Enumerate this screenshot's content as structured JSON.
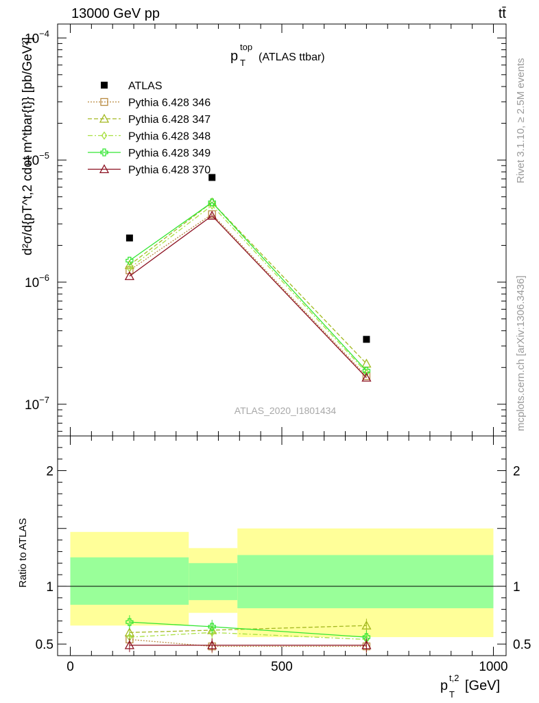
{
  "header": {
    "left": "13000 GeV pp",
    "right": "tt̄"
  },
  "side_labels": {
    "rivet": "Rivet 3.1.10, ≥ 2.5M events",
    "mcplots": "mcplots.cern.ch [arXiv:1306.3436]"
  },
  "chart_data": [
    {
      "type": "line",
      "title": "(ATLAS ttbar)",
      "title_main": "p",
      "title_sup": "top",
      "title_sub": "T",
      "ylabel": "d²σ/d{pT^t,2 cdot m^tbar{t}} [pb/GeV²]",
      "yscale": "log",
      "ylim": [
        5.5e-08,
        0.00013
      ],
      "xlim": [
        -30,
        1030
      ],
      "y_ticks": [
        "10⁻⁷",
        "10⁻⁶",
        "10⁻⁵",
        "10⁻⁴"
      ],
      "watermark": "ATLAS_2020_I1801434",
      "x": [
        140,
        335,
        700
      ],
      "series": [
        {
          "name": "ATLAS",
          "color": "#000000",
          "marker": "square-filled",
          "dash": "none",
          "values": [
            2.3e-06,
            7.2e-06,
            3.4e-07
          ]
        },
        {
          "name": "Pythia 6.428 346",
          "color": "#b8893e",
          "marker": "square-open",
          "dash": "dotted",
          "values": [
            1.25e-06,
            3.6e-06,
            1.7e-07
          ]
        },
        {
          "name": "Pythia 6.428 347",
          "color": "#a2b81e",
          "marker": "triangle-open",
          "dash": "dashed",
          "values": [
            1.38e-06,
            4.5e-06,
            2.15e-07
          ]
        },
        {
          "name": "Pythia 6.428 348",
          "color": "#a8e040",
          "marker": "diamond-open",
          "dash": "dashdot",
          "values": [
            1.3e-06,
            4.25e-06,
            1.82e-07
          ]
        },
        {
          "name": "Pythia 6.428 349",
          "color": "#33e633",
          "marker": "cross-open",
          "dash": "solid",
          "values": [
            1.5e-06,
            4.5e-06,
            1.88e-07
          ]
        },
        {
          "name": "Pythia 6.428 370",
          "color": "#8b0f1f",
          "marker": "triangle-open",
          "dash": "solid",
          "values": [
            1.12e-06,
            3.5e-06,
            1.65e-07
          ]
        }
      ]
    },
    {
      "type": "line",
      "ylabel": "Ratio to ATLAS",
      "xlabel": "[GeV]",
      "xlabel_main": "p",
      "xlabel_sup": "t,2",
      "xlabel_sub": "T",
      "ylim": [
        0.4,
        2.3
      ],
      "xlim": [
        -30,
        1030
      ],
      "y_ticks": [
        "0.5",
        "1",
        "2"
      ],
      "y_tick_values": [
        0.5,
        1,
        2
      ],
      "x_ticks": [
        "0",
        "500",
        "1000"
      ],
      "x_tick_values": [
        0,
        500,
        1000
      ],
      "bands": [
        {
          "x": [
            0,
            280
          ],
          "yellow": [
            0.66,
            1.47
          ],
          "green": [
            0.84,
            1.25
          ]
        },
        {
          "x": [
            280,
            395
          ],
          "yellow": [
            0.77,
            1.33
          ],
          "green": [
            0.88,
            1.2
          ]
        },
        {
          "x": [
            395,
            1000
          ],
          "yellow": [
            0.56,
            1.5
          ],
          "green": [
            0.81,
            1.27
          ]
        }
      ],
      "x": [
        140,
        335,
        700
      ],
      "series": [
        {
          "name": "Pythia 6.428 346",
          "values": [
            0.54,
            0.48,
            0.48
          ]
        },
        {
          "name": "Pythia 6.428 347",
          "values": [
            0.6,
            0.62,
            0.66
          ]
        },
        {
          "name": "Pythia 6.428 348",
          "values": [
            0.56,
            0.6,
            0.54
          ]
        },
        {
          "name": "Pythia 6.428 349",
          "values": [
            0.69,
            0.65,
            0.56
          ]
        },
        {
          "name": "Pythia 6.428 370",
          "values": [
            0.49,
            0.49,
            0.49
          ]
        }
      ]
    }
  ]
}
